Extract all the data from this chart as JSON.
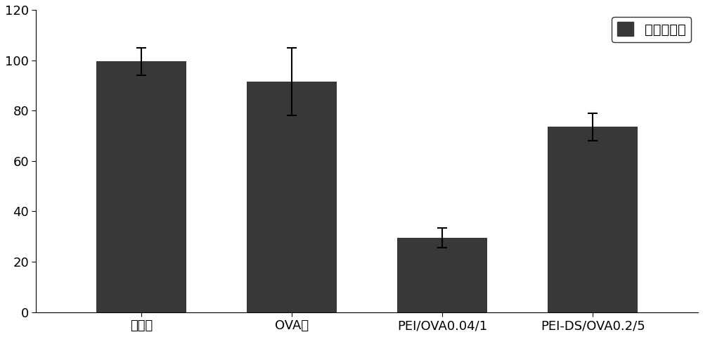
{
  "categories": [
    "阴性组",
    "OVA组",
    "PEI/OVA0.04/1",
    "PEI-DS/OVA0.2/5"
  ],
  "values": [
    99.5,
    91.5,
    29.5,
    73.5
  ],
  "errors": [
    5.5,
    13.5,
    4.0,
    5.5
  ],
  "bar_color": "#383838",
  "bar_width": 0.6,
  "ylim": [
    0,
    120
  ],
  "yticks": [
    0,
    20,
    40,
    60,
    80,
    100,
    120
  ],
  "legend_label": "活细胞比例",
  "legend_fontsize": 14,
  "tick_fontsize": 13,
  "background_color": "#ffffff",
  "figure_color": "#ffffff",
  "capsize": 5,
  "error_linewidth": 1.5,
  "x_positions": [
    1,
    2,
    3,
    4
  ],
  "xlim": [
    0.3,
    4.7
  ]
}
